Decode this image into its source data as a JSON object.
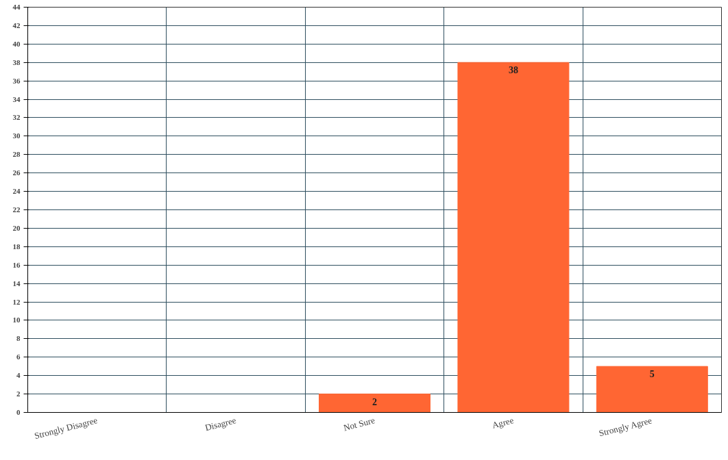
{
  "chart_data": {
    "type": "bar",
    "categories": [
      "Strongly Disagree",
      "Disagree",
      "Not Sure",
      "Agree",
      "Strongly Agree"
    ],
    "values": [
      0,
      0,
      2,
      38,
      5
    ],
    "value_labels": [
      null,
      null,
      "2",
      "38",
      "5"
    ],
    "color": "#ff6633",
    "ylim": [
      0,
      44
    ],
    "yticks": [
      0,
      2,
      4,
      6,
      8,
      10,
      12,
      14,
      16,
      18,
      20,
      22,
      24,
      26,
      28,
      30,
      32,
      34,
      36,
      38,
      40,
      42,
      44
    ],
    "grid": true
  }
}
